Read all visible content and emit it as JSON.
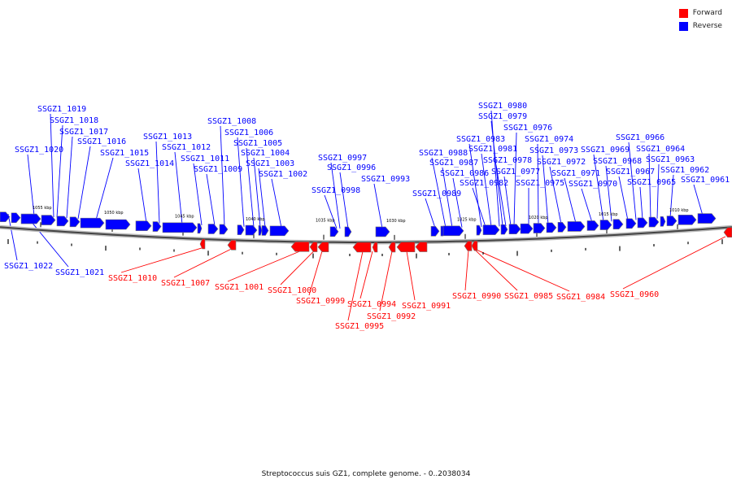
{
  "legend": {
    "forward": "Forward",
    "reverse": "Reverse",
    "forward_color": "#ff0000",
    "reverse_color": "#0000ff"
  },
  "caption": "Streptococcus suis GZ1, complete genome. - 0..2038034",
  "scale_labels": [
    "1055 kbp",
    "1050 kbp",
    "1045 kbp",
    "1040 kbp",
    "1035 kbp",
    "1030 kbp",
    "1025 kbp",
    "1020 kbp",
    "1015 kbp",
    "1010 kbp"
  ],
  "reverse_genes": [
    "SSGZ1_1022",
    "SSGZ1_1021",
    "SSGZ1_1020",
    "SSGZ1_1019",
    "SSGZ1_1018",
    "SSGZ1_1017",
    "SSGZ1_1016",
    "SSGZ1_1015",
    "SSGZ1_1014",
    "SSGZ1_1013",
    "SSGZ1_1012",
    "SSGZ1_1011",
    "SSGZ1_1009",
    "SSGZ1_1008",
    "SSGZ1_1006",
    "SSGZ1_1005",
    "SSGZ1_1004",
    "SSGZ1_1003",
    "SSGZ1_1002",
    "SSGZ1_0998",
    "SSGZ1_0997",
    "SSGZ1_0996",
    "SSGZ1_0993",
    "SSGZ1_0989",
    "SSGZ1_0988",
    "SSGZ1_0987",
    "SSGZ1_0986",
    "SSGZ1_0983",
    "SSGZ1_0982",
    "SSGZ1_0981",
    "SSGZ1_0980",
    "SSGZ1_0979",
    "SSGZ1_0978",
    "SSGZ1_0977",
    "SSGZ1_0976",
    "SSGZ1_0975",
    "SSGZ1_0974",
    "SSGZ1_0973",
    "SSGZ1_0972",
    "SSGZ1_0971",
    "SSGZ1_0970",
    "SSGZ1_0969",
    "SSGZ1_0968",
    "SSGZ1_0967",
    "SSGZ1_0966",
    "SSGZ1_0965",
    "SSGZ1_0964",
    "SSGZ1_0963",
    "SSGZ1_0962",
    "SSGZ1_0961"
  ],
  "forward_genes": [
    "SSGZ1_1010",
    "SSGZ1_1007",
    "SSGZ1_1001",
    "SSGZ1_1000",
    "SSGZ1_0999",
    "SSGZ1_0995",
    "SSGZ1_0994",
    "SSGZ1_0992",
    "SSGZ1_0991",
    "SSGZ1_0990",
    "SSGZ1_0985",
    "SSGZ1_0984",
    "SSGZ1_0960"
  ]
}
